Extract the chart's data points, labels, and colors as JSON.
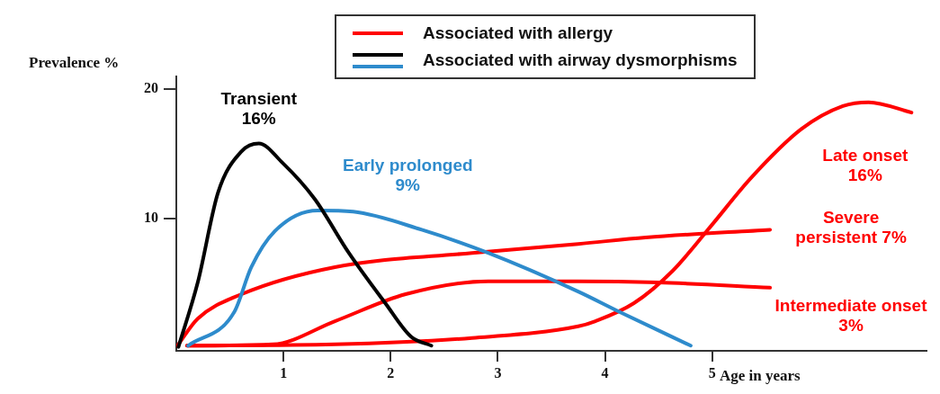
{
  "chart_data": {
    "type": "line",
    "xlabel": "Age in years",
    "ylabel": "Prevalence %",
    "xlim": [
      0,
      7
    ],
    "xticks": [
      1,
      2,
      3,
      4,
      5
    ],
    "ylim": [
      -0.3,
      21
    ],
    "yticks": [
      10,
      20
    ],
    "legend": "top",
    "marker": "none",
    "line_style": "solid",
    "series": [
      {
        "name": "Transient\n16%",
        "color": "#000000",
        "x": [
          0.02,
          0.2,
          0.39,
          0.61,
          0.77,
          0.99,
          1.29,
          1.61,
          1.95,
          2.19,
          2.38
        ],
        "values": [
          0,
          5.0,
          12.0,
          15.2,
          15.8,
          14.3,
          11.5,
          7.3,
          3.4,
          0.8,
          0.1
        ]
      },
      {
        "name": "Early prolonged\n9%",
        "color": "#2e8bcc",
        "x": [
          0.11,
          0.54,
          0.7,
          0.92,
          1.32,
          1.65,
          2.29,
          2.91,
          3.75,
          4.14,
          4.8
        ],
        "values": [
          0.1,
          2.7,
          6.2,
          9.0,
          10.6,
          10.5,
          9.1,
          7.3,
          4.3,
          2.7,
          0.1
        ]
      },
      {
        "name": "Late onset\n16%",
        "color": "#ff0000",
        "x": [
          0.1,
          1.48,
          2.76,
          3.75,
          3.91,
          4.27,
          4.63,
          4.99,
          5.36,
          5.83,
          6.22,
          6.46,
          6.86
        ],
        "values": [
          0.1,
          0.2,
          0.7,
          1.6,
          2.0,
          3.4,
          5.9,
          9.4,
          13.1,
          16.9,
          18.7,
          19.0,
          18.2
        ]
      },
      {
        "name": "Severe\npersistent 7%",
        "color": "#ff0000",
        "x": [
          0.01,
          0.2,
          0.61,
          1.48,
          2.76,
          3.75,
          4.38,
          5.54
        ],
        "values": [
          0.1,
          2.2,
          4.1,
          6.2,
          7.3,
          8.0,
          8.5,
          9.1
        ]
      },
      {
        "name": "Intermediate onset\n3%",
        "color": "#ff0000",
        "x": [
          0.1,
          0.9,
          1.48,
          2.14,
          2.91,
          3.75,
          4.5,
          5.54
        ],
        "values": [
          0.1,
          0.2,
          2.0,
          4.1,
          5.1,
          5.1,
          5.0,
          4.6
        ]
      }
    ],
    "annotations": [
      "Associated with allergy",
      "Associated with airway dysmorphisms"
    ]
  }
}
